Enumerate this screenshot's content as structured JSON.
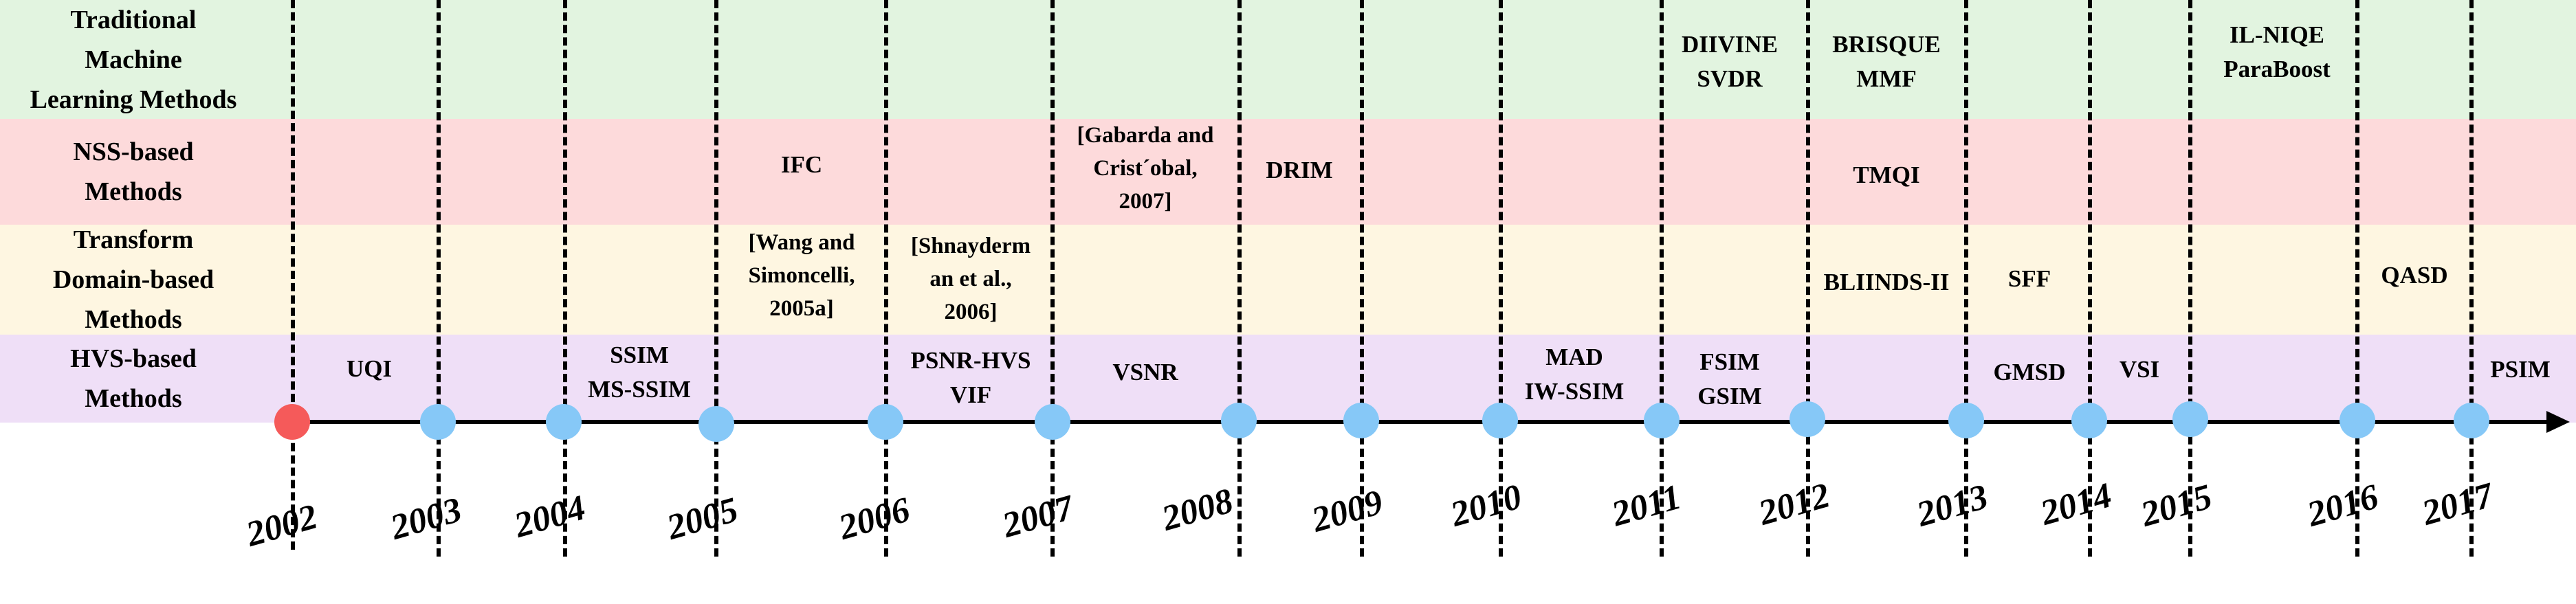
{
  "colors": {
    "band_ml": "#e2f4e0",
    "band_nss": "#fddadb",
    "band_transform": "#fef6e1",
    "band_hvs": "#efdff7",
    "dot_start": "#f55a5a",
    "dot": "#86c8f7",
    "ink": "#000000"
  },
  "bands": [
    {
      "id": "ml",
      "label": "Traditional\nMachine\nLearning Methods"
    },
    {
      "id": "nss",
      "label": "NSS-based\nMethods"
    },
    {
      "id": "transform",
      "label": "Transform\nDomain-based\nMethods"
    },
    {
      "id": "hvs",
      "label": "HVS-based\nMethods"
    }
  ],
  "years": [
    "2002",
    "2003",
    "2004",
    "2005",
    "2006",
    "2007",
    "2008",
    "2009",
    "2010",
    "2011",
    "2012",
    "2013",
    "2014",
    "2015",
    "2016",
    "2017"
  ],
  "entries": {
    "uqi": "UQI",
    "ssim": "SSIM\nMS-SSIM",
    "ifc": "IFC",
    "wang": "[Wang and\nSimoncelli,\n2005a]",
    "shnayderman": "[Shnayderm\nan et al.,\n2006]",
    "psnr_hvs": "PSNR-HVS\nVIF",
    "gabarda": "[Gabarda and\nCrist´obal,\n2007]",
    "vsnr": "VSNR",
    "drim": "DRIM",
    "mad": "MAD\nIW-SSIM",
    "diivine": "DIIVINE\nSVDR",
    "fsim": "FSIM\nGSIM",
    "brisque": "BRISQUE\nMMF",
    "tmqi": "TMQI",
    "bliinds": "BLIINDS-II",
    "sff": "SFF",
    "gmsd": "GMSD",
    "vsi": "VSI",
    "ilniqe": "IL-NIQE\nParaBoost",
    "qasd": "QASD",
    "psim": "PSIM"
  }
}
